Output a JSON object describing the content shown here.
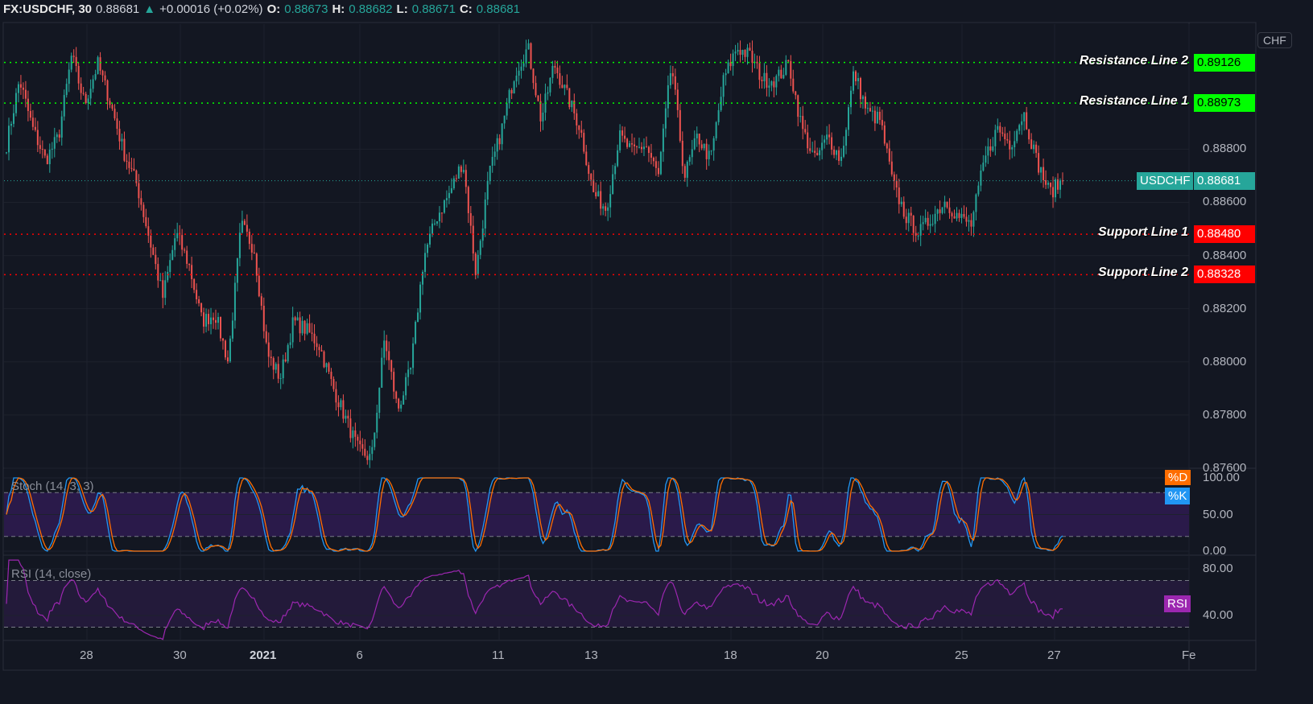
{
  "header": {
    "symbol": "FX:USDCHF, 30",
    "last": "0.88681",
    "change": "+0.00016 (+0.02%)",
    "o_label": "O:",
    "o": "0.88673",
    "h_label": "H:",
    "h": "0.88682",
    "l_label": "L:",
    "l": "0.88671",
    "c_label": "C:",
    "c": "0.88681"
  },
  "currency_button": "CHF",
  "colors": {
    "up": "#26a69a",
    "down": "#ef5350",
    "resistance": "#00ff00",
    "support": "#ff0000",
    "stoch_k": "#2196f3",
    "stoch_d": "#ff6d00",
    "rsi": "#9c27b0",
    "background": "#131722"
  },
  "chart_data": [
    {
      "type": "candlestick",
      "symbol": "USDCHF",
      "ylim": [
        0.876,
        0.8927
      ],
      "y_ticks": [
        "0.88800",
        "0.88600",
        "0.88400",
        "0.88200",
        "0.88000",
        "0.87800",
        "0.87600"
      ],
      "x_ticks": [
        "28",
        "30",
        "2021",
        "6",
        "11",
        "13",
        "18",
        "20",
        "25",
        "27",
        "Fe"
      ],
      "close_approx": [
        0.88818,
        0.89061,
        0.88879,
        0.88758,
        0.88848,
        0.89152,
        0.8897,
        0.89121,
        0.8897,
        0.88788,
        0.88667,
        0.88455,
        0.88242,
        0.88485,
        0.88364,
        0.88152,
        0.88182,
        0.88,
        0.88515,
        0.88424,
        0.8803,
        0.87939,
        0.88152,
        0.88121,
        0.88061,
        0.87909,
        0.87788,
        0.87667,
        0.87636,
        0.88091,
        0.87818,
        0.8797,
        0.88394,
        0.88545,
        0.88636,
        0.88758,
        0.88333,
        0.88697,
        0.88879,
        0.89091,
        0.89182,
        0.88909,
        0.89121,
        0.89,
        0.88879,
        0.88636,
        0.88576,
        0.88848,
        0.88788,
        0.88818,
        0.88697,
        0.89121,
        0.88697,
        0.88848,
        0.88758,
        0.89061,
        0.89182,
        0.89152,
        0.89061,
        0.89061,
        0.89121,
        0.88879,
        0.88758,
        0.88848,
        0.88758,
        0.89091,
        0.88939,
        0.88909,
        0.88667,
        0.88545,
        0.88485,
        0.88545,
        0.88606,
        0.88545,
        0.88515,
        0.88758,
        0.88879,
        0.88818,
        0.88939,
        0.88758,
        0.88636,
        0.88682
      ],
      "lines": [
        {
          "name": "Resistance Line 2",
          "value": "0.89126",
          "kind": "resistance"
        },
        {
          "name": "Resistance Line 1",
          "value": "0.88973",
          "kind": "resistance"
        },
        {
          "name": "Support Line 1",
          "value": "0.88480",
          "kind": "support"
        },
        {
          "name": "Support Line 2",
          "value": "0.88328",
          "kind": "support"
        }
      ],
      "last_price": {
        "label": "USDCHF",
        "value": "0.88681"
      }
    },
    {
      "type": "line",
      "title": "Stoch (14, 3, 3)",
      "ylim": [
        0,
        100
      ],
      "bands": [
        80,
        20
      ],
      "y_ticks": [
        "100.00",
        "50.00",
        "0.00"
      ],
      "legend": [
        "%D",
        "%K"
      ]
    },
    {
      "type": "line",
      "title": "RSI (14, close)",
      "ylim": [
        20,
        90
      ],
      "bands": [
        70,
        30
      ],
      "y_ticks": [
        "80.00",
        "40.00"
      ],
      "legend": [
        "RSI"
      ]
    }
  ]
}
